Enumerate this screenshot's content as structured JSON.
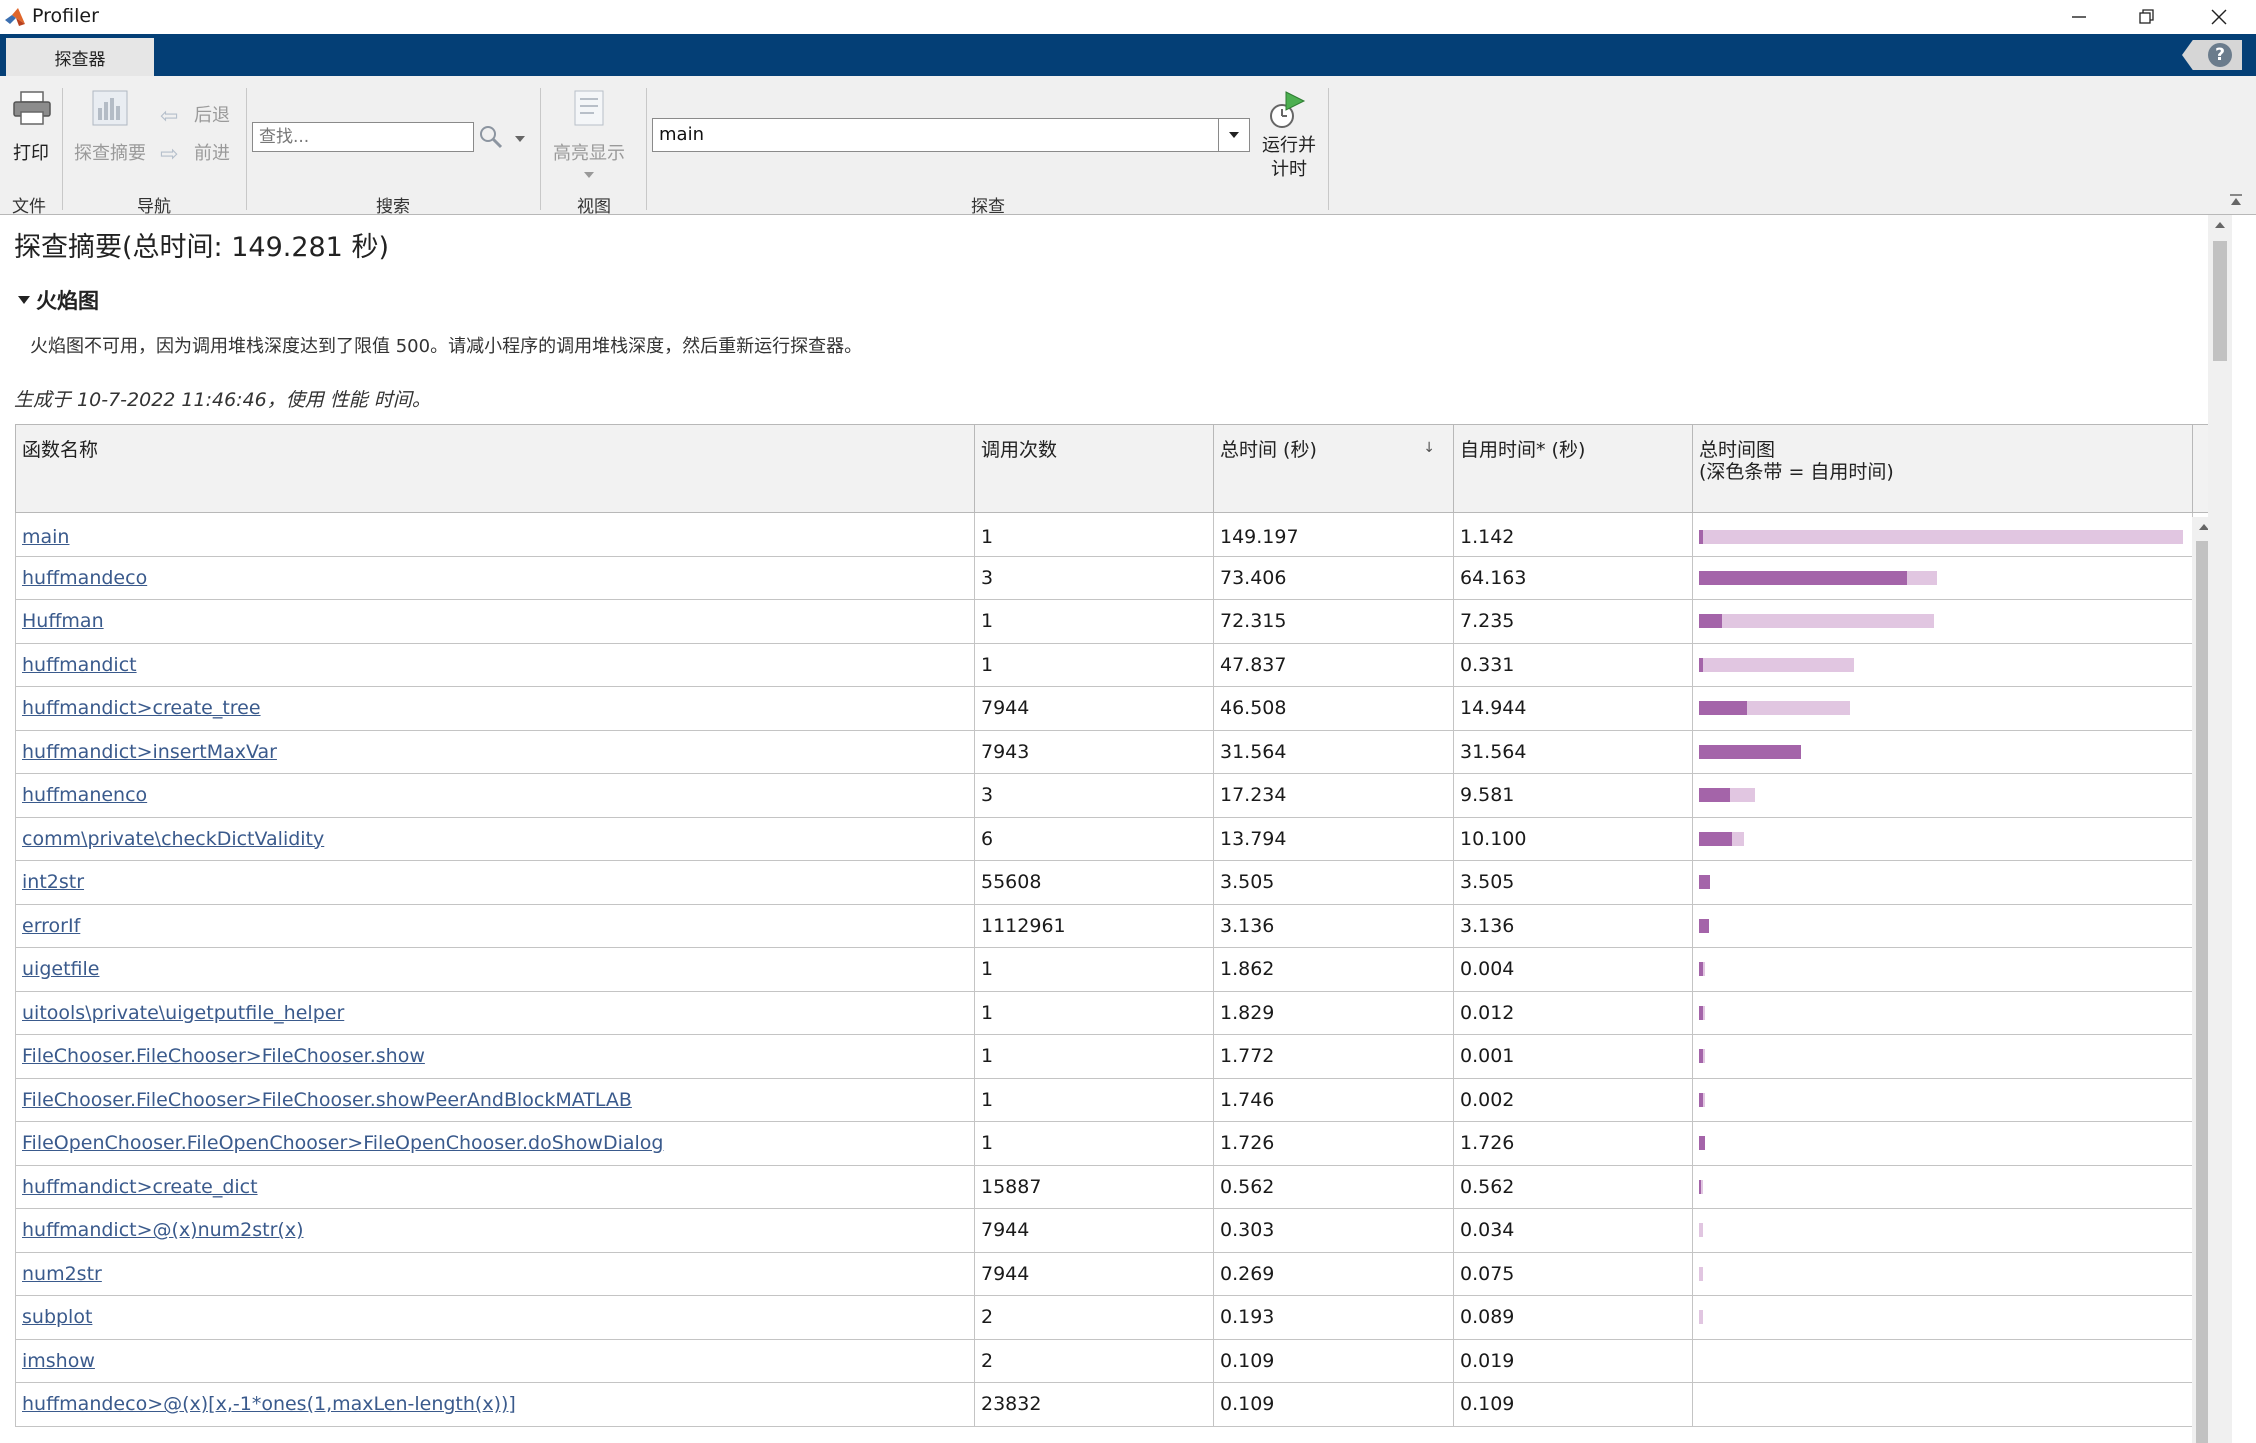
{
  "window": {
    "title": "Profiler"
  },
  "tabs": {
    "explorer": "探查器"
  },
  "toolstrip": {
    "print_label": "打印",
    "summary_label": "探查摘要",
    "back_label": "后退",
    "forward_label": "前进",
    "search_placeholder": "查找...",
    "highlight_label": "高亮显示",
    "function_value": "main",
    "run_label_1": "运行并",
    "run_label_2": "计时",
    "sections": {
      "file": "文件",
      "nav": "导航",
      "search": "搜索",
      "view": "视图",
      "profile": "探查"
    }
  },
  "content": {
    "heading": "探查摘要(总时间: 149.281 秒)",
    "flame_heading": "火焰图",
    "flame_message": "火焰图不可用，因为调用堆栈深度达到了限值 500。请减小程序的调用堆栈深度，然后重新运行探查器。",
    "generated": "生成于 10-7-2022 11:46:46，使用 性能 时间。"
  },
  "table": {
    "headers": {
      "name": "函数名称",
      "calls": "调用次数",
      "total": "总时间 (秒)",
      "self": "自用时间* (秒)",
      "graph_1": "总时间图",
      "graph_2": "(深色条带 = 自用时间)"
    },
    "sort_indicator": "↓",
    "max_total": 149.197,
    "rows": [
      {
        "name": "main",
        "calls": "1",
        "total": "149.197",
        "self": "1.142"
      },
      {
        "name": "huffmandeco",
        "calls": "3",
        "total": "73.406",
        "self": "64.163"
      },
      {
        "name": "Huffman",
        "calls": "1",
        "total": "72.315",
        "self": "7.235"
      },
      {
        "name": "huffmandict",
        "calls": "1",
        "total": "47.837",
        "self": "0.331"
      },
      {
        "name": "huffmandict>create_tree",
        "calls": "7944",
        "total": "46.508",
        "self": "14.944"
      },
      {
        "name": "huffmandict>insertMaxVar",
        "calls": "7943",
        "total": "31.564",
        "self": "31.564"
      },
      {
        "name": "huffmanenco",
        "calls": "3",
        "total": "17.234",
        "self": "9.581"
      },
      {
        "name": "comm\\private\\checkDictValidity",
        "calls": "6",
        "total": "13.794",
        "self": "10.100"
      },
      {
        "name": "int2str",
        "calls": "55608",
        "total": "3.505",
        "self": "3.505"
      },
      {
        "name": "errorIf",
        "calls": "1112961",
        "total": "3.136",
        "self": "3.136"
      },
      {
        "name": "uigetfile",
        "calls": "1",
        "total": "1.862",
        "self": "0.004"
      },
      {
        "name": "uitools\\private\\uigetputfile_helper",
        "calls": "1",
        "total": "1.829",
        "self": "0.012"
      },
      {
        "name": "FileChooser.FileChooser>FileChooser.show",
        "calls": "1",
        "total": "1.772",
        "self": "0.001"
      },
      {
        "name": "FileChooser.FileChooser>FileChooser.showPeerAndBlockMATLAB",
        "calls": "1",
        "total": "1.746",
        "self": "0.002"
      },
      {
        "name": "FileOpenChooser.FileOpenChooser>FileOpenChooser.doShowDialog",
        "calls": "1",
        "total": "1.726",
        "self": "1.726"
      },
      {
        "name": "huffmandict>create_dict",
        "calls": "15887",
        "total": "0.562",
        "self": "0.562"
      },
      {
        "name": "huffmandict>@(x)num2str(x)",
        "calls": "7944",
        "total": "0.303",
        "self": "0.034"
      },
      {
        "name": "num2str",
        "calls": "7944",
        "total": "0.269",
        "self": "0.075"
      },
      {
        "name": "subplot",
        "calls": "2",
        "total": "0.193",
        "self": "0.089"
      },
      {
        "name": "imshow",
        "calls": "2",
        "total": "0.109",
        "self": "0.019"
      },
      {
        "name": "huffmandeco>@(x)[x,-1*ones(1,maxLen-length(x))]",
        "calls": "23832",
        "total": "0.109",
        "self": "0.109"
      }
    ]
  },
  "colors": {
    "tabstrip": "#043f76",
    "bar_total": "#e1c6e1",
    "bar_self": "#a464a9",
    "link": "#3a5a8c"
  }
}
